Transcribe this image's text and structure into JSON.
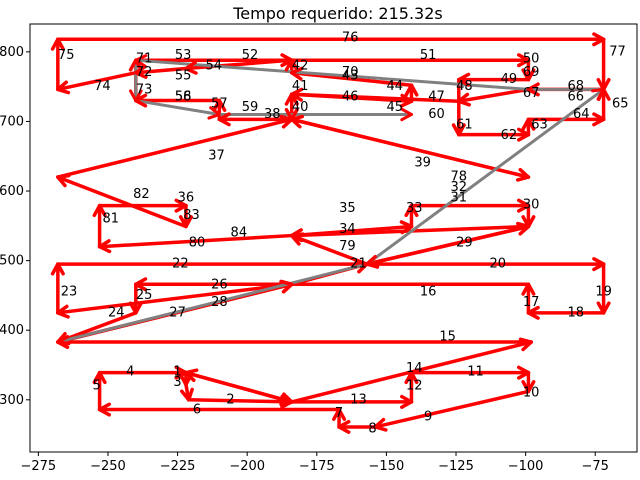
{
  "chart_data": {
    "type": "line",
    "title": "Tempo requerido: 215.32s",
    "xlabel": "",
    "ylabel": "",
    "xlim": [
      -278,
      -60
    ],
    "ylim": [
      225,
      840
    ],
    "xticks": [
      -275,
      -250,
      -225,
      -200,
      -175,
      -150,
      -125,
      -100,
      -75
    ],
    "yticks": [
      300,
      400,
      500,
      600,
      700,
      800
    ],
    "grid": false,
    "colors": {
      "route": "#ff0000",
      "return": "#808080",
      "arrowhead": "#ff0000"
    },
    "nodes": [
      {
        "id": "1",
        "x": -225,
        "y": 340
      },
      {
        "id": "2",
        "x": -206,
        "y": 300
      },
      {
        "id": "3",
        "x": -225,
        "y": 325
      },
      {
        "id": "4",
        "x": -242,
        "y": 340
      },
      {
        "id": "5",
        "x": -254,
        "y": 320
      },
      {
        "id": "6",
        "x": -218,
        "y": 285
      },
      {
        "id": "7",
        "x": -167,
        "y": 280
      },
      {
        "id": "8",
        "x": -155,
        "y": 258
      },
      {
        "id": "9",
        "x": -135,
        "y": 275
      },
      {
        "id": "10",
        "x": -98,
        "y": 310
      },
      {
        "id": "11",
        "x": -118,
        "y": 340
      },
      {
        "id": "12",
        "x": -140,
        "y": 320
      },
      {
        "id": "13",
        "x": -160,
        "y": 300
      },
      {
        "id": "14",
        "x": -140,
        "y": 345
      },
      {
        "id": "15",
        "x": -128,
        "y": 390
      },
      {
        "id": "16",
        "x": -135,
        "y": 455
      },
      {
        "id": "17",
        "x": -98,
        "y": 440
      },
      {
        "id": "18",
        "x": -82,
        "y": 425
      },
      {
        "id": "19",
        "x": -72,
        "y": 455
      },
      {
        "id": "20",
        "x": -110,
        "y": 495
      },
      {
        "id": "21",
        "x": -160,
        "y": 495
      },
      {
        "id": "22",
        "x": -224,
        "y": 495
      },
      {
        "id": "23",
        "x": -264,
        "y": 455
      },
      {
        "id": "24",
        "x": -247,
        "y": 425
      },
      {
        "id": "25",
        "x": -237,
        "y": 450
      },
      {
        "id": "26",
        "x": -210,
        "y": 465
      },
      {
        "id": "27",
        "x": -225,
        "y": 425
      },
      {
        "id": "28",
        "x": -210,
        "y": 440
      },
      {
        "id": "29",
        "x": -122,
        "y": 525
      },
      {
        "id": "30",
        "x": -98,
        "y": 580
      },
      {
        "id": "31",
        "x": -124,
        "y": 590
      },
      {
        "id": "32",
        "x": -124,
        "y": 605
      },
      {
        "id": "33",
        "x": -140,
        "y": 575
      },
      {
        "id": "34",
        "x": -164,
        "y": 545
      },
      {
        "id": "35",
        "x": -164,
        "y": 575
      },
      {
        "id": "36",
        "x": -222,
        "y": 590
      },
      {
        "id": "37",
        "x": -211,
        "y": 650
      },
      {
        "id": "38",
        "x": -191,
        "y": 710
      },
      {
        "id": "39",
        "x": -137,
        "y": 640
      },
      {
        "id": "40",
        "x": -181,
        "y": 720
      },
      {
        "id": "41",
        "x": -181,
        "y": 750
      },
      {
        "id": "42",
        "x": -181,
        "y": 780
      },
      {
        "id": "43",
        "x": -163,
        "y": 765
      },
      {
        "id": "44",
        "x": -147,
        "y": 750
      },
      {
        "id": "45",
        "x": -147,
        "y": 720
      },
      {
        "id": "46",
        "x": -163,
        "y": 735
      },
      {
        "id": "47",
        "x": -132,
        "y": 735
      },
      {
        "id": "48",
        "x": -122,
        "y": 750
      },
      {
        "id": "49",
        "x": -106,
        "y": 760
      },
      {
        "id": "50",
        "x": -98,
        "y": 790
      },
      {
        "id": "51",
        "x": -135,
        "y": 795
      },
      {
        "id": "52",
        "x": -199,
        "y": 795
      },
      {
        "id": "53",
        "x": -223,
        "y": 795
      },
      {
        "id": "54",
        "x": -212,
        "y": 780
      },
      {
        "id": "55",
        "x": -223,
        "y": 765
      },
      {
        "id": "56",
        "x": -223,
        "y": 735
      },
      {
        "id": "57",
        "x": -210,
        "y": 725
      },
      {
        "id": "58",
        "x": -223,
        "y": 735
      },
      {
        "id": "59",
        "x": -199,
        "y": 720
      },
      {
        "id": "60",
        "x": -132,
        "y": 710
      },
      {
        "id": "61",
        "x": -122,
        "y": 695
      },
      {
        "id": "62",
        "x": -106,
        "y": 680
      },
      {
        "id": "63",
        "x": -95,
        "y": 695
      },
      {
        "id": "64",
        "x": -80,
        "y": 710
      },
      {
        "id": "65",
        "x": -66,
        "y": 725
      },
      {
        "id": "66",
        "x": -82,
        "y": 735
      },
      {
        "id": "67",
        "x": -98,
        "y": 740
      },
      {
        "id": "68",
        "x": -82,
        "y": 750
      },
      {
        "id": "69",
        "x": -98,
        "y": 770
      },
      {
        "id": "70",
        "x": -163,
        "y": 770
      },
      {
        "id": "71",
        "x": -237,
        "y": 790
      },
      {
        "id": "72",
        "x": -237,
        "y": 770
      },
      {
        "id": "73",
        "x": -237,
        "y": 745
      },
      {
        "id": "74",
        "x": -252,
        "y": 750
      },
      {
        "id": "75",
        "x": -265,
        "y": 795
      },
      {
        "id": "76",
        "x": -163,
        "y": 820
      },
      {
        "id": "77",
        "x": -67,
        "y": 800
      },
      {
        "id": "78",
        "x": -124,
        "y": 620
      },
      {
        "id": "79",
        "x": -164,
        "y": 520
      },
      {
        "id": "80",
        "x": -218,
        "y": 525
      },
      {
        "id": "81",
        "x": -249,
        "y": 560
      },
      {
        "id": "82",
        "x": -238,
        "y": 595
      },
      {
        "id": "83",
        "x": -220,
        "y": 565
      },
      {
        "id": "84",
        "x": -203,
        "y": 540
      }
    ],
    "route": [
      [
        -184,
        297
      ],
      [
        -222,
        339
      ],
      [
        -222,
        322
      ],
      [
        -221,
        300
      ],
      [
        -184,
        297
      ],
      [
        -141,
        297
      ],
      [
        -141,
        339
      ],
      [
        -99,
        339
      ],
      [
        -99,
        312
      ],
      [
        -154,
        261
      ],
      [
        -167,
        261
      ],
      [
        -167,
        286
      ],
      [
        -253,
        286
      ],
      [
        -253,
        339
      ],
      [
        -222,
        339
      ],
      [
        -184,
        297
      ],
      [
        -98,
        383
      ],
      [
        -268,
        383
      ],
      [
        -184,
        466
      ],
      [
        -268,
        425
      ],
      [
        -268,
        495
      ],
      [
        -72,
        495
      ],
      [
        -72,
        425
      ],
      [
        -99,
        425
      ],
      [
        -99,
        466
      ],
      [
        -240,
        466
      ],
      [
        -240,
        425
      ],
      [
        -268,
        383
      ],
      [
        -184,
        466
      ],
      [
        -157,
        495
      ],
      [
        -99,
        549
      ],
      [
        -157,
        495
      ],
      [
        -184,
        536
      ],
      [
        -141,
        549
      ],
      [
        -141,
        579
      ],
      [
        -99,
        579
      ],
      [
        -99,
        549
      ],
      [
        -184,
        536
      ],
      [
        -253,
        520
      ],
      [
        -253,
        579
      ],
      [
        -222,
        579
      ],
      [
        -222,
        549
      ],
      [
        -268,
        620
      ],
      [
        -184,
        703
      ],
      [
        -99,
        620
      ],
      [
        -184,
        703
      ],
      [
        -184,
        739
      ],
      [
        -141,
        729
      ],
      [
        -141,
        752
      ],
      [
        -184,
        770
      ],
      [
        -184,
        788
      ],
      [
        -99,
        788
      ],
      [
        -99,
        760
      ],
      [
        -124,
        760
      ],
      [
        -124,
        681
      ],
      [
        -99,
        681
      ],
      [
        -99,
        703
      ],
      [
        -72,
        703
      ],
      [
        -72,
        746
      ],
      [
        -99,
        746
      ],
      [
        -124,
        729
      ],
      [
        -184,
        739
      ],
      [
        -184,
        703
      ],
      [
        -210,
        703
      ],
      [
        -210,
        730
      ],
      [
        -240,
        730
      ],
      [
        -240,
        788
      ],
      [
        -184,
        788
      ],
      [
        -222,
        776
      ],
      [
        -240,
        770
      ],
      [
        -268,
        746
      ],
      [
        -268,
        818
      ],
      [
        -72,
        818
      ],
      [
        -72,
        746
      ]
    ],
    "return_path": [
      [
        -268,
        383
      ],
      [
        -157,
        495
      ],
      [
        -72,
        746
      ],
      [
        -99,
        746
      ],
      [
        -240,
        788
      ],
      [
        -240,
        730
      ],
      [
        -210,
        710
      ],
      [
        -141,
        710
      ]
    ]
  }
}
